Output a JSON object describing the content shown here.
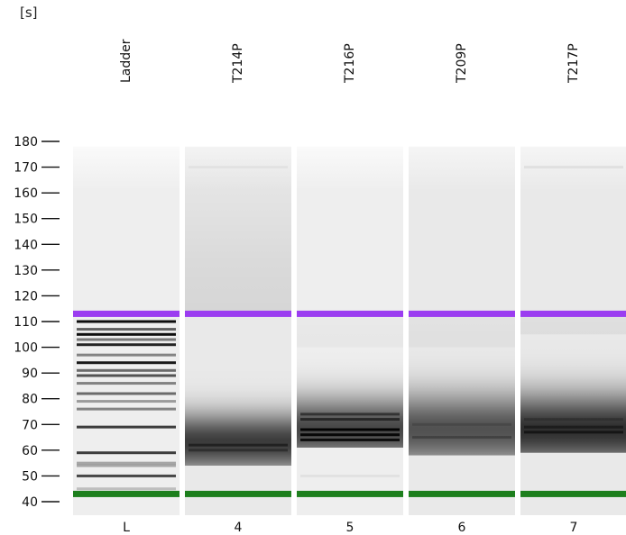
{
  "chart_data": {
    "type": "heatmap",
    "subtype": "gel-electrophoresis",
    "y_unit": "[s]",
    "y_ticks": [
      180,
      170,
      160,
      150,
      140,
      130,
      120,
      110,
      100,
      90,
      80,
      70,
      60,
      50,
      40
    ],
    "y_range": [
      40,
      180
    ],
    "lanes": [
      {
        "name": "Ladder",
        "number": "L",
        "upper_marker": 113,
        "lower_marker": 43,
        "bands": [
          {
            "pos": 110,
            "intensity": 0.95
          },
          {
            "pos": 107,
            "intensity": 0.6
          },
          {
            "pos": 105,
            "intensity": 0.95
          },
          {
            "pos": 103,
            "intensity": 0.5
          },
          {
            "pos": 101,
            "intensity": 0.85
          },
          {
            "pos": 97,
            "intensity": 0.45
          },
          {
            "pos": 94,
            "intensity": 0.9
          },
          {
            "pos": 91,
            "intensity": 0.55
          },
          {
            "pos": 89,
            "intensity": 0.65
          },
          {
            "pos": 86,
            "intensity": 0.45
          },
          {
            "pos": 82,
            "intensity": 0.55
          },
          {
            "pos": 79,
            "intensity": 0.35
          },
          {
            "pos": 76,
            "intensity": 0.45
          },
          {
            "pos": 69,
            "intensity": 0.75
          },
          {
            "pos": 59,
            "intensity": 0.75
          },
          {
            "pos": 55,
            "intensity": 0.3
          },
          {
            "pos": 54,
            "intensity": 0.3
          },
          {
            "pos": 50,
            "intensity": 0.7
          },
          {
            "pos": 45,
            "intensity": 0.2
          }
        ],
        "smear": [],
        "background": 0.02
      },
      {
        "name": "T214P",
        "number": "4",
        "upper_marker": 113,
        "lower_marker": 43,
        "bands": [
          {
            "pos": 170,
            "intensity": 0.04
          },
          {
            "pos": 62,
            "intensity": 0.45
          },
          {
            "pos": 60,
            "intensity": 0.35
          }
        ],
        "smear": [
          {
            "from": 54,
            "to": 113,
            "peak": 63,
            "width": 8,
            "intensity": 0.75
          },
          {
            "from": 113,
            "to": 178,
            "peak": 113,
            "width": 30,
            "intensity": 0.08
          }
        ],
        "background": 0.04
      },
      {
        "name": "T216P",
        "number": "5",
        "upper_marker": 113,
        "lower_marker": 43,
        "bands": [
          {
            "pos": 74,
            "intensity": 0.5
          },
          {
            "pos": 72,
            "intensity": 0.55
          },
          {
            "pos": 68,
            "intensity": 0.95
          },
          {
            "pos": 66,
            "intensity": 0.9
          },
          {
            "pos": 64,
            "intensity": 0.85
          },
          {
            "pos": 50,
            "intensity": 0.05
          }
        ],
        "smear": [
          {
            "from": 61,
            "to": 100,
            "peak": 68,
            "width": 9,
            "intensity": 0.7
          },
          {
            "from": 100,
            "to": 113,
            "peak": 100,
            "width": 12,
            "intensity": 0.03
          }
        ],
        "background": 0.02
      },
      {
        "name": "T209P",
        "number": "6",
        "upper_marker": 113,
        "lower_marker": 43,
        "bands": [
          {
            "pos": 65,
            "intensity": 0.25
          },
          {
            "pos": 70,
            "intensity": 0.15
          }
        ],
        "smear": [
          {
            "from": 58,
            "to": 100,
            "peak": 68,
            "width": 10,
            "intensity": 0.65
          },
          {
            "from": 100,
            "to": 113,
            "peak": 100,
            "width": 14,
            "intensity": 0.04
          }
        ],
        "background": 0.04
      },
      {
        "name": "T217P",
        "number": "7",
        "upper_marker": 113,
        "lower_marker": 43,
        "bands": [
          {
            "pos": 170,
            "intensity": 0.06
          },
          {
            "pos": 67,
            "intensity": 0.55
          },
          {
            "pos": 69,
            "intensity": 0.4
          },
          {
            "pos": 72,
            "intensity": 0.2
          }
        ],
        "smear": [
          {
            "from": 59,
            "to": 105,
            "peak": 68,
            "width": 10,
            "intensity": 0.8
          },
          {
            "from": 105,
            "to": 113,
            "peak": 105,
            "width": 10,
            "intensity": 0.05
          }
        ],
        "background": 0.04
      }
    ],
    "marker_colors": {
      "upper": "#9b3df0",
      "lower": "#1d7f1d"
    },
    "lane_background": "#f3f3f3",
    "band_color": "#000000",
    "grid": false
  }
}
